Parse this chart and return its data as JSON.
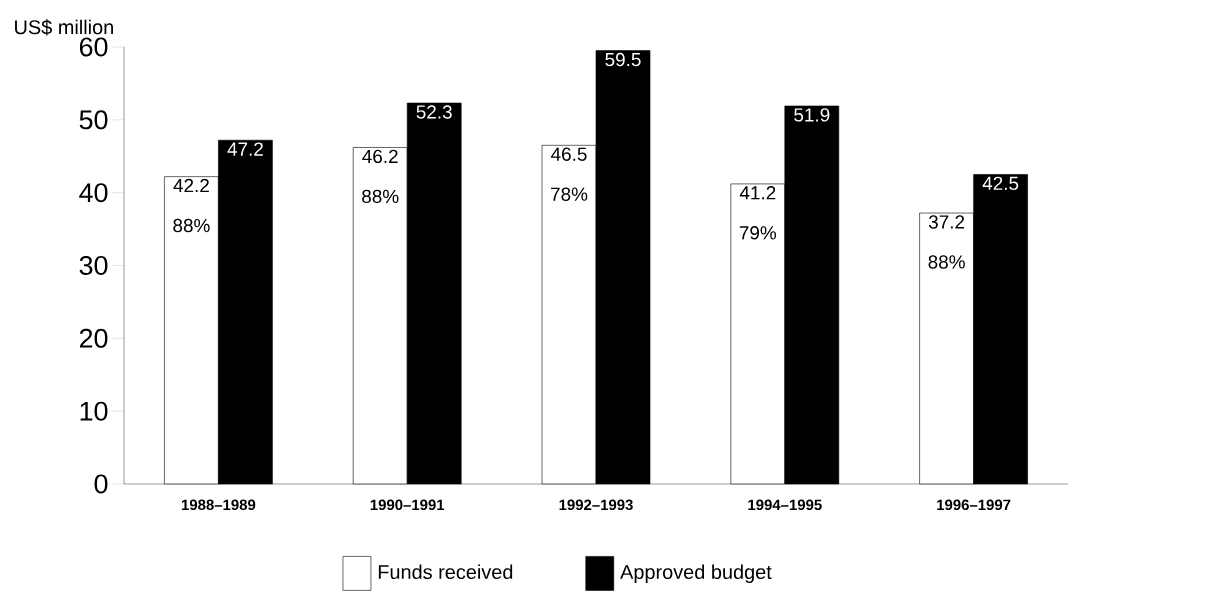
{
  "chart_data": {
    "type": "bar",
    "ylabel": "US$ million",
    "categories": [
      "1988–1989",
      "1990–1991",
      "1992–1993",
      "1994–1995",
      "1996–1997"
    ],
    "series": [
      {
        "name": "Funds received",
        "color": "#ffffff",
        "values": [
          42.2,
          46.2,
          46.5,
          41.2,
          37.2
        ]
      },
      {
        "name": "Approved budget",
        "color": "#000000",
        "values": [
          47.2,
          52.3,
          59.5,
          51.9,
          42.5
        ]
      }
    ],
    "ylim": [
      0,
      60
    ],
    "yticks": [
      0,
      10,
      20,
      30,
      40,
      50,
      60
    ],
    "data_labels": true,
    "legend": "bottom",
    "annotations": [
      {
        "text": "88%",
        "x": "1988–1989"
      },
      {
        "text": "88%",
        "x": "1990–1991"
      },
      {
        "text": "78%",
        "x": "1992–1993"
      },
      {
        "text": "79%",
        "x": "1994–1995"
      },
      {
        "text": "88%",
        "x": "1996–1997"
      }
    ]
  }
}
